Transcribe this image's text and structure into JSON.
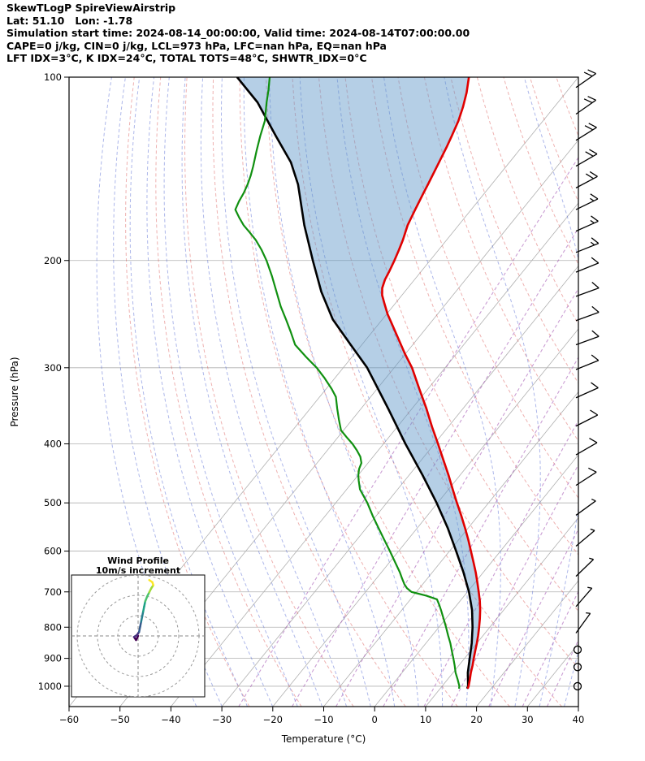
{
  "header": {
    "title": "SkewTLogP SpireViewAirstrip",
    "location": "Lat: 51.10   Lon: -1.78",
    "times": "Simulation start time: 2024-08-14_00:00:00, Valid time: 2024-08-14T07:00:00.00",
    "indices1": "CAPE=0 j/kg, CIN=0 j/kg, LCL=973 hPa, LFC=nan hPa, EQ=nan hPa",
    "indices2": "LFT IDX=3°C, K IDX=24°C, TOTAL TOTS=48°C, SHWTR_IDX=0°C"
  },
  "chart_data": {
    "type": "skewt-logp",
    "title": "SkewTLogP SpireViewAirstrip",
    "xlabel": "Temperature (°C)",
    "ylabel": "Pressure (hPa)",
    "pressure_range": [
      100,
      1080
    ],
    "temp_range": [
      -60,
      40
    ],
    "skew_deg": 45,
    "pressure_ticks": [
      100,
      200,
      300,
      400,
      500,
      600,
      700,
      800,
      900,
      1000
    ],
    "temp_ticks": [
      -60,
      -50,
      -40,
      -30,
      -20,
      -10,
      0,
      10,
      20,
      30,
      40
    ],
    "colors": {
      "temperature": "#e00000",
      "dewpoint": "#109010",
      "parcel": "#000000",
      "shade": "#5a95c8",
      "grid": "#b0b0b0",
      "dry_adiabat": "#d9534f",
      "moist_adiabat": "#4a5fd0",
      "mixing_ratio": "#a65bb5",
      "barb": "#000000"
    },
    "temperature_profile": [
      [
        1009,
        15.4
      ],
      [
        1000,
        15.2
      ],
      [
        975,
        14.4
      ],
      [
        950,
        13.5
      ],
      [
        925,
        12.7
      ],
      [
        900,
        11.8
      ],
      [
        875,
        10.9
      ],
      [
        850,
        10.0
      ],
      [
        825,
        9.0
      ],
      [
        800,
        7.9
      ],
      [
        775,
        6.7
      ],
      [
        750,
        5.4
      ],
      [
        725,
        3.9
      ],
      [
        700,
        2.2
      ],
      [
        675,
        0.4
      ],
      [
        650,
        -1.5
      ],
      [
        625,
        -3.6
      ],
      [
        600,
        -5.8
      ],
      [
        575,
        -8.1
      ],
      [
        550,
        -10.6
      ],
      [
        525,
        -13.3
      ],
      [
        500,
        -16.2
      ],
      [
        475,
        -19.2
      ],
      [
        450,
        -22.3
      ],
      [
        425,
        -25.7
      ],
      [
        400,
        -29.3
      ],
      [
        375,
        -33.2
      ],
      [
        350,
        -37.2
      ],
      [
        325,
        -41.7
      ],
      [
        300,
        -46.5
      ],
      [
        285,
        -50.0
      ],
      [
        270,
        -53.5
      ],
      [
        255,
        -57.2
      ],
      [
        245,
        -59.8
      ],
      [
        235,
        -62.2
      ],
      [
        228,
        -63.9
      ],
      [
        222,
        -65.0
      ],
      [
        215,
        -65.8
      ],
      [
        208,
        -66.3
      ],
      [
        200,
        -67.0
      ],
      [
        192,
        -67.8
      ],
      [
        185,
        -68.6
      ],
      [
        175,
        -70.0
      ],
      [
        165,
        -71.0
      ],
      [
        155,
        -72.0
      ],
      [
        150,
        -72.5
      ],
      [
        140,
        -73.6
      ],
      [
        130,
        -74.8
      ],
      [
        125,
        -75.5
      ],
      [
        118,
        -76.6
      ],
      [
        112,
        -77.9
      ],
      [
        106,
        -79.5
      ],
      [
        100,
        -81.5
      ]
    ],
    "dewpoint_profile": [
      [
        1009,
        13.7
      ],
      [
        1000,
        13.4
      ],
      [
        975,
        12.0
      ],
      [
        950,
        10.5
      ],
      [
        925,
        9.2
      ],
      [
        900,
        7.8
      ],
      [
        875,
        6.3
      ],
      [
        850,
        4.8
      ],
      [
        825,
        3.1
      ],
      [
        800,
        1.4
      ],
      [
        775,
        -0.4
      ],
      [
        750,
        -2.3
      ],
      [
        735,
        -3.5
      ],
      [
        720,
        -4.8
      ],
      [
        710,
        -7.5
      ],
      [
        700,
        -11.0
      ],
      [
        690,
        -12.5
      ],
      [
        680,
        -13.6
      ],
      [
        665,
        -15.0
      ],
      [
        650,
        -16.4
      ],
      [
        625,
        -19.0
      ],
      [
        600,
        -21.7
      ],
      [
        575,
        -24.6
      ],
      [
        550,
        -27.6
      ],
      [
        525,
        -30.7
      ],
      [
        500,
        -33.8
      ],
      [
        475,
        -37.4
      ],
      [
        460,
        -39.0
      ],
      [
        450,
        -40.0
      ],
      [
        440,
        -40.8
      ],
      [
        430,
        -41.3
      ],
      [
        420,
        -42.5
      ],
      [
        410,
        -44.2
      ],
      [
        400,
        -46.1
      ],
      [
        390,
        -48.3
      ],
      [
        380,
        -50.5
      ],
      [
        365,
        -52.6
      ],
      [
        350,
        -54.7
      ],
      [
        335,
        -56.8
      ],
      [
        325,
        -58.9
      ],
      [
        312,
        -62.0
      ],
      [
        300,
        -65.2
      ],
      [
        288,
        -69.0
      ],
      [
        275,
        -73.1
      ],
      [
        262,
        -76.0
      ],
      [
        250,
        -78.9
      ],
      [
        238,
        -82.0
      ],
      [
        225,
        -85.2
      ],
      [
        212,
        -88.6
      ],
      [
        200,
        -92.1
      ],
      [
        192,
        -94.8
      ],
      [
        185,
        -97.5
      ],
      [
        180,
        -99.8
      ],
      [
        175,
        -102.2
      ],
      [
        170,
        -104.3
      ],
      [
        165,
        -106.3
      ],
      [
        160,
        -106.9
      ],
      [
        155,
        -107.3
      ],
      [
        150,
        -107.9
      ],
      [
        145,
        -108.7
      ],
      [
        140,
        -109.7
      ],
      [
        132,
        -111.5
      ],
      [
        125,
        -113.1
      ],
      [
        118,
        -114.6
      ],
      [
        110,
        -117.2
      ],
      [
        105,
        -118.8
      ],
      [
        100,
        -120.6
      ]
    ],
    "parcel_profile": [
      [
        1009,
        15.3
      ],
      [
        1000,
        15.1
      ],
      [
        950,
        12.9
      ],
      [
        900,
        11.0
      ],
      [
        850,
        9.0
      ],
      [
        800,
        6.6
      ],
      [
        750,
        3.8
      ],
      [
        700,
        0.3
      ],
      [
        650,
        -3.9
      ],
      [
        600,
        -8.7
      ],
      [
        550,
        -14.0
      ],
      [
        500,
        -20.2
      ],
      [
        450,
        -27.4
      ],
      [
        400,
        -35.7
      ],
      [
        350,
        -44.7
      ],
      [
        300,
        -55.3
      ],
      [
        275,
        -62.2
      ],
      [
        250,
        -69.7
      ],
      [
        225,
        -76.4
      ],
      [
        200,
        -83.0
      ],
      [
        175,
        -90.3
      ],
      [
        150,
        -98.0
      ],
      [
        138,
        -102.9
      ],
      [
        125,
        -110.0
      ],
      [
        110,
        -119.0
      ],
      [
        100,
        -127.0
      ]
    ],
    "shaded_area": {
      "between": [
        "parcel_profile",
        "temperature_profile"
      ],
      "opacity": 0.45
    },
    "background": {
      "dry_adiabats_theta": [
        -30,
        -20,
        -10,
        0,
        10,
        20,
        30,
        40,
        50,
        60,
        70,
        80,
        90,
        100,
        110,
        120,
        130,
        140,
        150,
        160,
        170,
        180,
        190,
        200
      ],
      "moist_adiabats_t0": [
        -40,
        -35,
        -30,
        -25,
        -20,
        -15,
        -10,
        -5,
        0,
        5,
        10,
        15,
        20,
        25,
        30,
        35,
        40
      ],
      "mixing_ratios_g_kg": [
        0.4,
        1,
        2,
        4,
        7,
        10,
        16,
        24,
        32
      ]
    },
    "wind_barbs": [
      [
        104,
        20,
        235
      ],
      [
        115,
        22,
        235
      ],
      [
        127,
        22,
        238
      ],
      [
        140,
        20,
        240
      ],
      [
        152,
        18,
        242
      ],
      [
        165,
        15,
        244
      ],
      [
        179,
        15,
        246
      ],
      [
        194,
        14,
        248
      ],
      [
        209,
        12,
        248
      ],
      [
        229,
        12,
        250
      ],
      [
        251,
        12,
        250
      ],
      [
        275,
        10,
        250
      ],
      [
        302,
        10,
        248
      ],
      [
        336,
        10,
        246
      ],
      [
        374,
        9,
        243
      ],
      [
        417,
        8,
        240
      ],
      [
        468,
        8,
        237
      ],
      [
        524,
        7,
        234
      ],
      [
        589,
        6,
        230
      ],
      [
        660,
        5,
        226
      ],
      [
        740,
        4,
        221
      ],
      [
        818,
        3,
        216
      ],
      [
        871,
        0,
        0
      ],
      [
        930,
        0,
        0
      ],
      [
        1000,
        0,
        0
      ]
    ],
    "hodograph": {
      "title": "Wind Profile",
      "subtitle": "10m/s increment",
      "ring_interval_ms": 10,
      "rings_ms": [
        10,
        20,
        30
      ],
      "trace_uv": [
        [
          0,
          0
        ],
        [
          -1,
          -2
        ],
        [
          -2,
          -0.5
        ],
        [
          -0.5,
          0.5
        ],
        [
          0.5,
          2
        ],
        [
          1,
          4.5
        ],
        [
          1.5,
          7
        ],
        [
          2,
          9.5
        ],
        [
          2.5,
          12
        ],
        [
          3,
          14.5
        ],
        [
          3.5,
          17
        ],
        [
          4.5,
          19.5
        ],
        [
          5.5,
          21.5
        ],
        [
          6.5,
          23.5
        ],
        [
          7.5,
          25
        ],
        [
          7,
          26.5
        ],
        [
          5.5,
          27.5
        ]
      ],
      "palette": [
        "#440154",
        "#46327e",
        "#365c8d",
        "#277f8e",
        "#1fa187",
        "#4ac16d",
        "#9fda3a",
        "#fde725"
      ]
    }
  }
}
